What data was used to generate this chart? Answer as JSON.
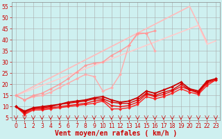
{
  "bg_color": "#cef0f0",
  "grid_color": "#aaaaaa",
  "xlabel": "Vent moyen/en rafales ( km/h )",
  "xlabel_color": "#cc0000",
  "tick_color": "#cc0000",
  "axis_color": "#888888",
  "xlim": [
    -0.5,
    23.5
  ],
  "ylim": [
    4,
    57
  ],
  "yticks": [
    5,
    10,
    15,
    20,
    25,
    30,
    35,
    40,
    45,
    50,
    55
  ],
  "xticks": [
    0,
    1,
    2,
    3,
    4,
    5,
    6,
    7,
    8,
    9,
    10,
    11,
    12,
    13,
    14,
    15,
    16,
    17,
    18,
    19,
    20,
    21,
    22,
    23
  ],
  "lines": [
    {
      "color": "#ffcccc",
      "linewidth": 1.2,
      "marker": null,
      "markersize": 0,
      "y": [
        15.0,
        16.5,
        18.0,
        19.5,
        21.0,
        22.5,
        24.0,
        25.5,
        27.0,
        28.5,
        30.0,
        31.5,
        33.0,
        34.5,
        36.0,
        37.5,
        39.0,
        40.5,
        42.0,
        43.5,
        45.0,
        46.5,
        38.0,
        39.5
      ]
    },
    {
      "color": "#ffbbbb",
      "linewidth": 1.2,
      "marker": null,
      "markersize": 0,
      "y": [
        15.0,
        17.0,
        19.0,
        21.0,
        23.0,
        25.0,
        27.0,
        29.0,
        31.0,
        33.0,
        35.0,
        37.0,
        39.0,
        41.0,
        43.0,
        45.0,
        47.0,
        49.0,
        51.0,
        53.0,
        55.0,
        47.0,
        39.0,
        null
      ]
    },
    {
      "color": "#ffaaaa",
      "linewidth": 1.0,
      "marker": "D",
      "markersize": 2,
      "y": [
        15.0,
        13.0,
        14.5,
        15.0,
        16.5,
        18.5,
        20.5,
        22.5,
        24.5,
        23.5,
        17.0,
        18.5,
        24.5,
        37.5,
        42.5,
        43.0,
        35.0,
        null,
        null,
        null,
        null,
        null,
        null,
        null
      ]
    },
    {
      "color": "#ff9999",
      "linewidth": 1.0,
      "marker": "D",
      "markersize": 2,
      "y": [
        15.0,
        13.0,
        15.0,
        16.0,
        18.0,
        20.0,
        22.5,
        25.5,
        28.5,
        29.5,
        30.0,
        33.0,
        35.0,
        37.5,
        43.0,
        43.0,
        44.0,
        null,
        null,
        null,
        null,
        null,
        null,
        null
      ]
    },
    {
      "color": "#ff2222",
      "linewidth": 1.0,
      "marker": "D",
      "markersize": 2,
      "y": [
        10.0,
        6.5,
        8.5,
        8.5,
        9.0,
        9.5,
        10.0,
        10.5,
        11.0,
        11.5,
        12.5,
        9.0,
        9.0,
        9.5,
        11.0,
        14.5,
        13.5,
        14.5,
        16.0,
        18.0,
        16.5,
        15.5,
        19.5,
        22.0
      ]
    },
    {
      "color": "#ee1111",
      "linewidth": 1.0,
      "marker": "D",
      "markersize": 2,
      "y": [
        10.0,
        7.0,
        9.0,
        9.0,
        9.5,
        10.0,
        10.5,
        11.0,
        11.5,
        12.5,
        13.0,
        10.5,
        10.0,
        10.5,
        12.0,
        15.5,
        14.5,
        15.5,
        17.0,
        19.0,
        17.5,
        16.0,
        20.5,
        22.0
      ]
    },
    {
      "color": "#dd0000",
      "linewidth": 1.0,
      "marker": "D",
      "markersize": 2,
      "y": [
        10.0,
        7.5,
        9.5,
        9.5,
        10.0,
        11.0,
        11.5,
        12.0,
        12.5,
        13.5,
        13.5,
        12.0,
        11.5,
        11.5,
        13.0,
        16.0,
        15.0,
        16.5,
        17.5,
        20.0,
        17.5,
        16.5,
        21.0,
        22.5
      ]
    },
    {
      "color": "#cc0000",
      "linewidth": 1.3,
      "marker": "D",
      "markersize": 2,
      "y": [
        10.0,
        8.0,
        9.5,
        10.0,
        10.5,
        11.0,
        12.0,
        12.5,
        13.0,
        14.0,
        14.5,
        13.0,
        12.0,
        12.5,
        14.0,
        17.0,
        16.0,
        17.5,
        19.0,
        21.0,
        18.0,
        17.0,
        21.5,
        22.5
      ]
    }
  ],
  "arrow_color": "#cc0000",
  "fontsize_tick": 5.5,
  "fontsize_xlabel": 7
}
